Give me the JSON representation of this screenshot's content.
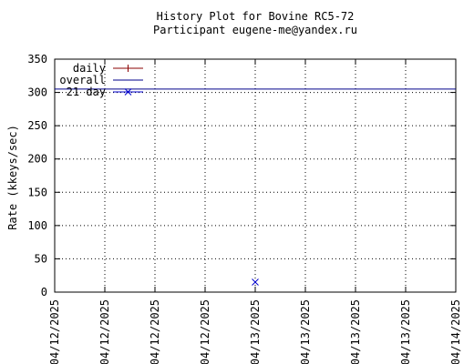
{
  "chart_data": {
    "type": "line",
    "title": "History Plot for Bovine RC5-72",
    "subtitle": "Participant eugene-me@yandex.ru",
    "ylabel": "Rate (kkeys/sec)",
    "xlabel": "",
    "ylim": [
      0,
      350
    ],
    "yticks": [
      0,
      50,
      100,
      150,
      200,
      250,
      300,
      350
    ],
    "xticks": [
      "04/12/2025",
      "04/12/2025",
      "04/12/2025",
      "04/12/2025",
      "04/13/2025",
      "04/13/2025",
      "04/13/2025",
      "04/13/2025",
      "04/14/2025"
    ],
    "grid": true,
    "legend_position": "top-left",
    "series": [
      {
        "name": "daily",
        "style": "line-with-plus",
        "color": "#8b0000",
        "points": []
      },
      {
        "name": "overall",
        "style": "line",
        "color": "#00008b",
        "constant_y": 305
      },
      {
        "name": "21 day",
        "style": "x-marker",
        "color": "#0000cd",
        "points": [
          {
            "x_tick_index": 4,
            "y": 15
          }
        ]
      }
    ]
  }
}
